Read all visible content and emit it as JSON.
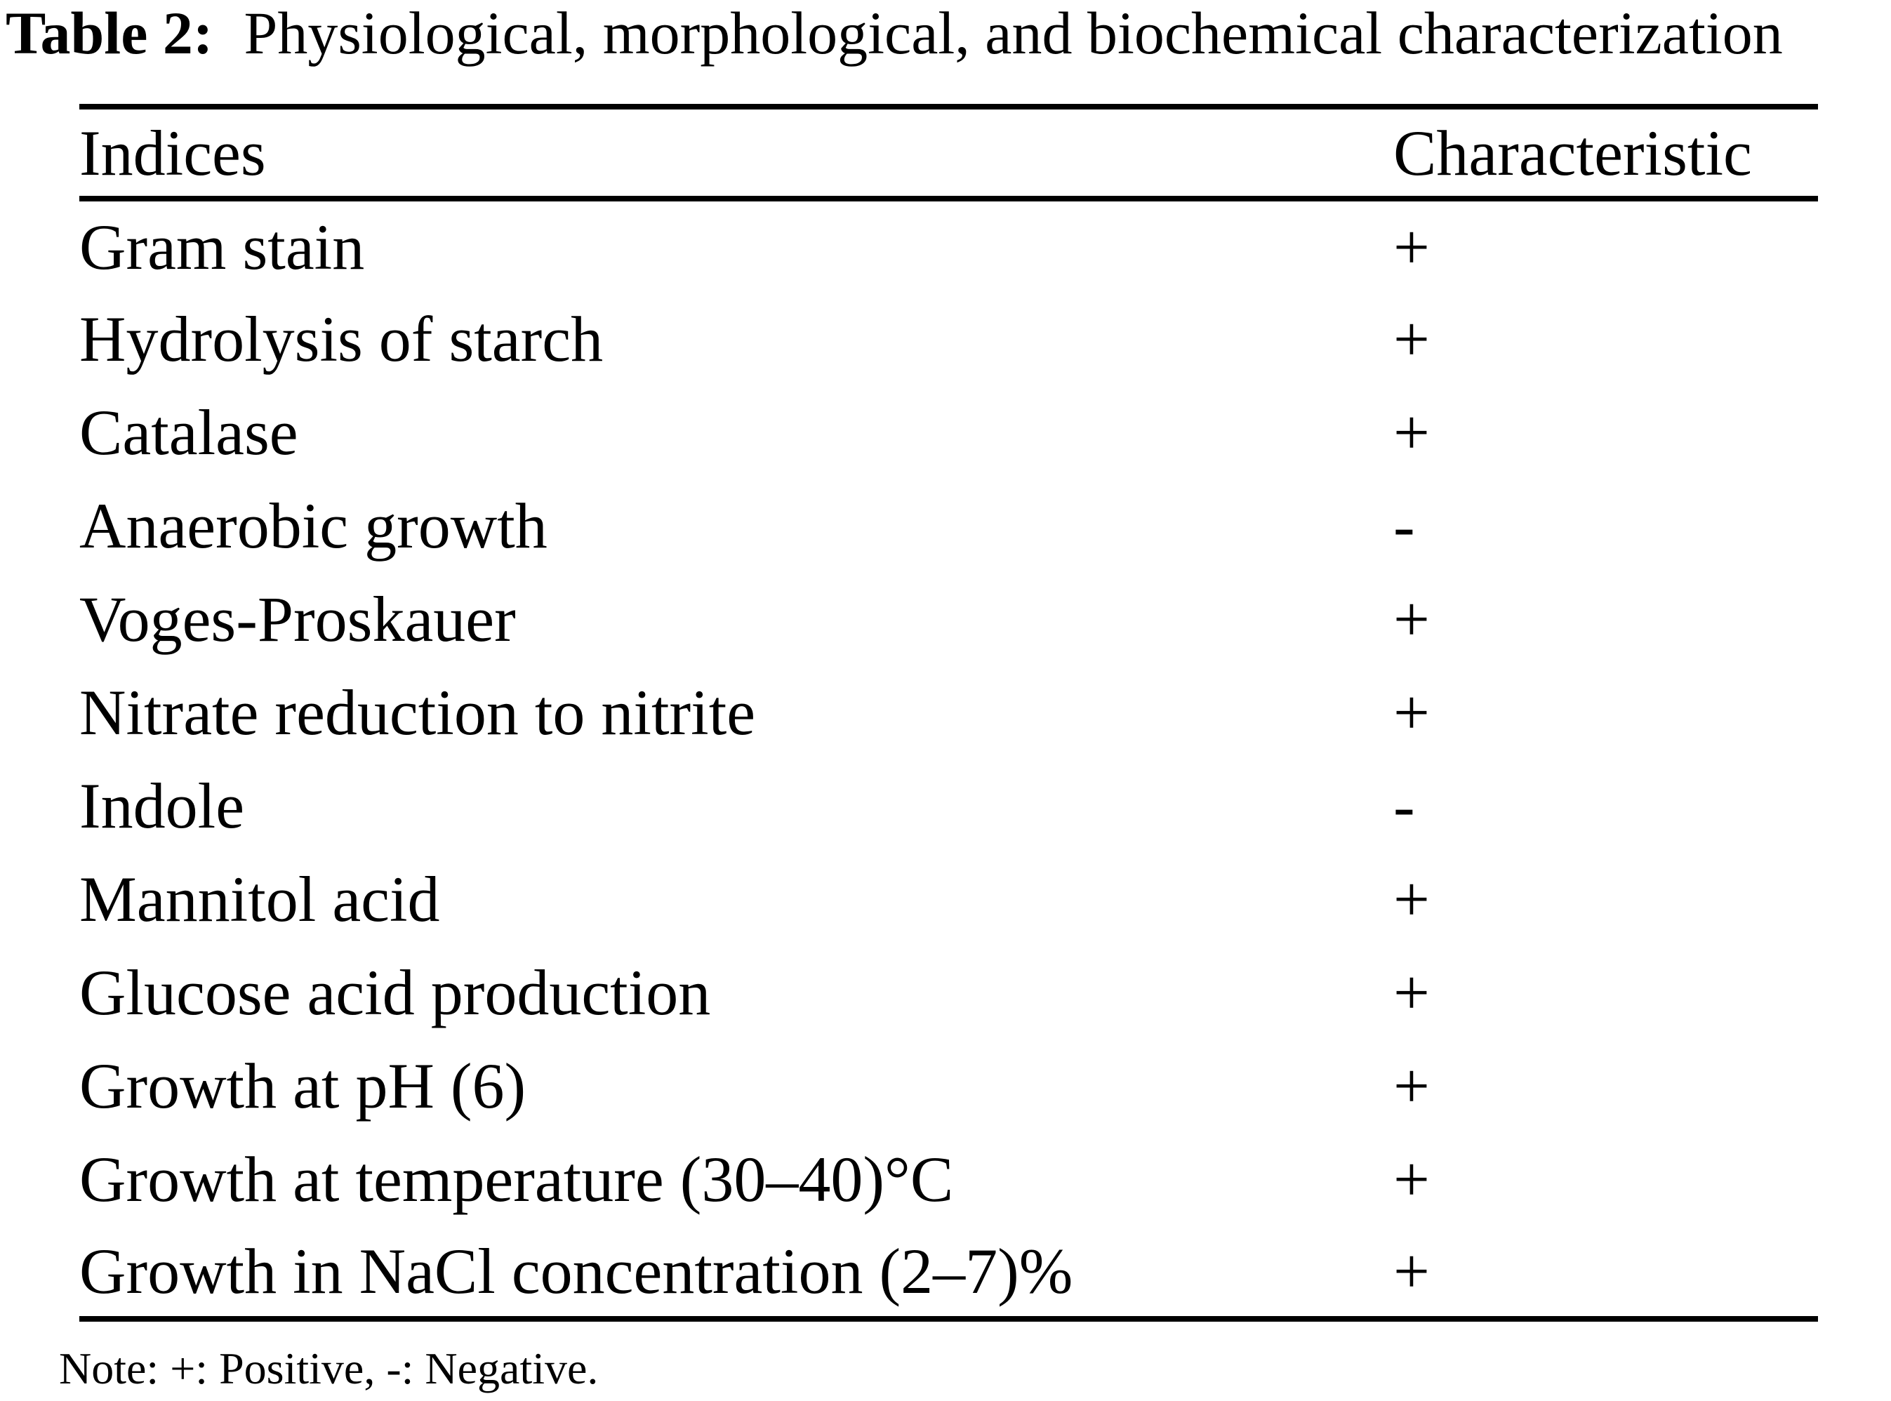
{
  "title": {
    "label": "Table 2:",
    "text": "Physiological, morphological, and biochemical characterization"
  },
  "table": {
    "columns": [
      "Indices",
      "Characteristic"
    ],
    "rows": [
      {
        "index": "Gram stain",
        "characteristic": "+"
      },
      {
        "index": "Hydrolysis of starch",
        "characteristic": "+"
      },
      {
        "index": "Catalase",
        "characteristic": "+"
      },
      {
        "index": "Anaerobic growth",
        "characteristic": "-"
      },
      {
        "index": "Voges-Proskauer",
        "characteristic": "+"
      },
      {
        "index": "Nitrate reduction to nitrite",
        "characteristic": "+"
      },
      {
        "index": "Indole",
        "characteristic": "-"
      },
      {
        "index": "Mannitol acid",
        "characteristic": "+"
      },
      {
        "index": "Glucose acid production",
        "characteristic": "+"
      },
      {
        "index": "Growth at pH (6)",
        "characteristic": "+"
      },
      {
        "index": "Growth at temperature (30–40)°C",
        "characteristic": "+"
      },
      {
        "index": "Growth in NaCl concentration (2–7)%",
        "characteristic": "+"
      }
    ]
  },
  "note": "Note: +: Positive, -: Negative."
}
